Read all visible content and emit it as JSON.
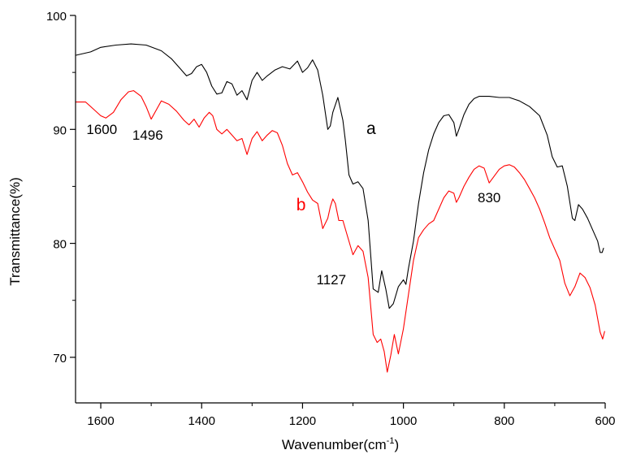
{
  "chart_data": {
    "type": "line",
    "title": "",
    "xlabel": "Wavenumber(cm",
    "xlabel_sup": "-1",
    "xlabel_close": ")",
    "ylabel": "Transmittance(%)",
    "xlim": [
      1650,
      600
    ],
    "ylim": [
      66,
      100
    ],
    "x_reversed": true,
    "grid": false,
    "xticks": [
      1600,
      1400,
      1200,
      1000,
      800,
      600
    ],
    "yticks": [
      70,
      80,
      90,
      100
    ],
    "series": [
      {
        "name": "a",
        "color": "#000000",
        "points": [
          [
            1650,
            96.5
          ],
          [
            1620,
            96.8
          ],
          [
            1600,
            97.2
          ],
          [
            1570,
            97.4
          ],
          [
            1540,
            97.5
          ],
          [
            1510,
            97.4
          ],
          [
            1480,
            96.9
          ],
          [
            1460,
            96.2
          ],
          [
            1440,
            95.2
          ],
          [
            1430,
            94.7
          ],
          [
            1420,
            94.9
          ],
          [
            1410,
            95.5
          ],
          [
            1400,
            95.7
          ],
          [
            1390,
            95.0
          ],
          [
            1380,
            93.8
          ],
          [
            1370,
            93.1
          ],
          [
            1360,
            93.2
          ],
          [
            1350,
            94.2
          ],
          [
            1340,
            94.0
          ],
          [
            1330,
            93.0
          ],
          [
            1320,
            93.4
          ],
          [
            1310,
            92.6
          ],
          [
            1300,
            94.3
          ],
          [
            1290,
            95.0
          ],
          [
            1280,
            94.3
          ],
          [
            1270,
            94.7
          ],
          [
            1255,
            95.2
          ],
          [
            1240,
            95.5
          ],
          [
            1225,
            95.3
          ],
          [
            1210,
            96.0
          ],
          [
            1200,
            95.0
          ],
          [
            1190,
            95.4
          ],
          [
            1180,
            96.1
          ],
          [
            1170,
            95.2
          ],
          [
            1160,
            93.0
          ],
          [
            1150,
            90.0
          ],
          [
            1145,
            90.3
          ],
          [
            1140,
            91.5
          ],
          [
            1130,
            92.8
          ],
          [
            1120,
            90.8
          ],
          [
            1115,
            89.0
          ],
          [
            1108,
            86.0
          ],
          [
            1100,
            85.2
          ],
          [
            1090,
            85.4
          ],
          [
            1080,
            84.8
          ],
          [
            1070,
            82.0
          ],
          [
            1060,
            76.0
          ],
          [
            1050,
            75.7
          ],
          [
            1043,
            77.6
          ],
          [
            1035,
            76.0
          ],
          [
            1028,
            74.3
          ],
          [
            1020,
            74.7
          ],
          [
            1010,
            76.2
          ],
          [
            1000,
            76.8
          ],
          [
            995,
            76.4
          ],
          [
            990,
            77.8
          ],
          [
            980,
            80.2
          ],
          [
            970,
            83.5
          ],
          [
            960,
            86.2
          ],
          [
            950,
            88.2
          ],
          [
            940,
            89.6
          ],
          [
            930,
            90.6
          ],
          [
            920,
            91.2
          ],
          [
            910,
            91.3
          ],
          [
            900,
            90.6
          ],
          [
            895,
            89.4
          ],
          [
            890,
            90.0
          ],
          [
            880,
            91.3
          ],
          [
            870,
            92.2
          ],
          [
            860,
            92.7
          ],
          [
            850,
            92.9
          ],
          [
            830,
            92.9
          ],
          [
            810,
            92.8
          ],
          [
            790,
            92.8
          ],
          [
            770,
            92.5
          ],
          [
            750,
            92.0
          ],
          [
            730,
            91.2
          ],
          [
            715,
            89.5
          ],
          [
            705,
            87.6
          ],
          [
            695,
            86.7
          ],
          [
            685,
            86.8
          ],
          [
            675,
            85.0
          ],
          [
            665,
            82.2
          ],
          [
            660,
            82.0
          ],
          [
            653,
            83.4
          ],
          [
            645,
            83.0
          ],
          [
            635,
            82.2
          ],
          [
            625,
            81.2
          ],
          [
            615,
            80.2
          ],
          [
            610,
            79.2
          ],
          [
            606,
            79.2
          ],
          [
            603,
            79.6
          ]
        ]
      },
      {
        "name": "b",
        "color": "#ff0000",
        "points": [
          [
            1650,
            92.4
          ],
          [
            1630,
            92.4
          ],
          [
            1615,
            91.8
          ],
          [
            1600,
            91.2
          ],
          [
            1590,
            91.0
          ],
          [
            1575,
            91.5
          ],
          [
            1560,
            92.6
          ],
          [
            1545,
            93.3
          ],
          [
            1535,
            93.4
          ],
          [
            1520,
            92.9
          ],
          [
            1510,
            92.0
          ],
          [
            1500,
            90.9
          ],
          [
            1490,
            91.7
          ],
          [
            1480,
            92.5
          ],
          [
            1465,
            92.2
          ],
          [
            1450,
            91.6
          ],
          [
            1435,
            90.8
          ],
          [
            1425,
            90.4
          ],
          [
            1415,
            90.9
          ],
          [
            1405,
            90.2
          ],
          [
            1395,
            91.0
          ],
          [
            1385,
            91.5
          ],
          [
            1378,
            91.2
          ],
          [
            1370,
            90.0
          ],
          [
            1360,
            89.6
          ],
          [
            1350,
            90.0
          ],
          [
            1340,
            89.5
          ],
          [
            1330,
            89.0
          ],
          [
            1320,
            89.2
          ],
          [
            1310,
            87.8
          ],
          [
            1300,
            89.2
          ],
          [
            1290,
            89.8
          ],
          [
            1280,
            89.0
          ],
          [
            1270,
            89.5
          ],
          [
            1260,
            89.9
          ],
          [
            1250,
            89.7
          ],
          [
            1240,
            88.6
          ],
          [
            1230,
            87.0
          ],
          [
            1220,
            86.0
          ],
          [
            1210,
            86.2
          ],
          [
            1200,
            85.4
          ],
          [
            1190,
            84.5
          ],
          [
            1180,
            83.8
          ],
          [
            1170,
            83.5
          ],
          [
            1160,
            81.3
          ],
          [
            1150,
            82.2
          ],
          [
            1145,
            83.2
          ],
          [
            1140,
            83.9
          ],
          [
            1135,
            83.5
          ],
          [
            1128,
            82.0
          ],
          [
            1120,
            82.0
          ],
          [
            1110,
            80.5
          ],
          [
            1100,
            79.0
          ],
          [
            1090,
            79.8
          ],
          [
            1080,
            79.3
          ],
          [
            1070,
            77.0
          ],
          [
            1060,
            72.0
          ],
          [
            1052,
            71.3
          ],
          [
            1045,
            71.6
          ],
          [
            1038,
            70.5
          ],
          [
            1032,
            68.7
          ],
          [
            1025,
            70.2
          ],
          [
            1018,
            72.0
          ],
          [
            1010,
            70.3
          ],
          [
            1000,
            72.5
          ],
          [
            990,
            75.5
          ],
          [
            980,
            78.5
          ],
          [
            970,
            80.5
          ],
          [
            960,
            81.2
          ],
          [
            950,
            81.7
          ],
          [
            940,
            82.0
          ],
          [
            930,
            83.0
          ],
          [
            920,
            84.0
          ],
          [
            910,
            84.6
          ],
          [
            900,
            84.4
          ],
          [
            895,
            83.6
          ],
          [
            890,
            84.0
          ],
          [
            880,
            85.0
          ],
          [
            870,
            85.8
          ],
          [
            860,
            86.5
          ],
          [
            850,
            86.8
          ],
          [
            840,
            86.6
          ],
          [
            830,
            85.3
          ],
          [
            820,
            85.9
          ],
          [
            810,
            86.5
          ],
          [
            800,
            86.8
          ],
          [
            790,
            86.9
          ],
          [
            780,
            86.7
          ],
          [
            770,
            86.2
          ],
          [
            760,
            85.6
          ],
          [
            750,
            84.8
          ],
          [
            740,
            84.0
          ],
          [
            730,
            83.0
          ],
          [
            720,
            81.8
          ],
          [
            710,
            80.5
          ],
          [
            700,
            79.5
          ],
          [
            690,
            78.5
          ],
          [
            680,
            76.5
          ],
          [
            670,
            75.4
          ],
          [
            660,
            76.2
          ],
          [
            650,
            77.4
          ],
          [
            640,
            77.0
          ],
          [
            630,
            76.1
          ],
          [
            620,
            74.6
          ],
          [
            610,
            72.2
          ],
          [
            605,
            71.6
          ],
          [
            601,
            72.3
          ]
        ]
      }
    ],
    "annotations": [
      {
        "text": "1600",
        "x": 1598,
        "y": 89.6,
        "color": "#000000"
      },
      {
        "text": "1496",
        "x": 1507,
        "y": 89.1,
        "color": "#000000"
      },
      {
        "text": "a",
        "x": 1064,
        "y": 89.6,
        "color": "#000000"
      },
      {
        "text": "b",
        "x": 1203,
        "y": 82.9,
        "color": "#ff0000"
      },
      {
        "text": "1127",
        "x": 1143,
        "y": 76.4,
        "color": "#000000"
      },
      {
        "text": "830",
        "x": 830,
        "y": 83.6,
        "color": "#000000"
      }
    ],
    "legend": "none"
  }
}
